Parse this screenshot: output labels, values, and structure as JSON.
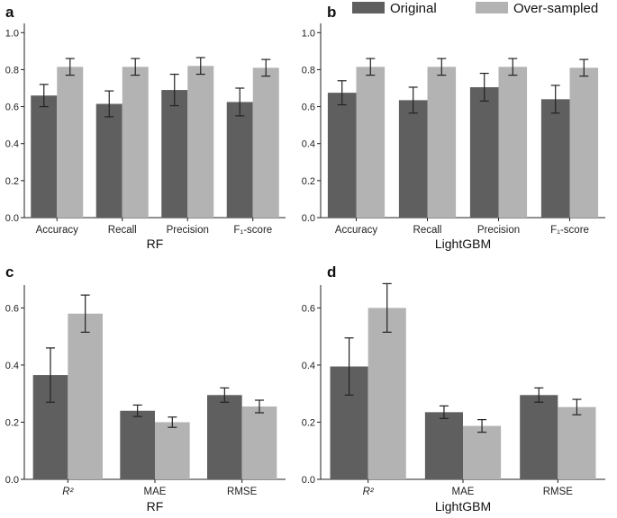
{
  "legend": {
    "items": [
      {
        "label": "Original",
        "color": "#5f5f5f"
      },
      {
        "label": "Over-sampled",
        "color": "#b3b3b3"
      }
    ],
    "placement": "top-right"
  },
  "chart_data": [
    {
      "panel": "a",
      "type": "bar",
      "categories": [
        "Accuracy",
        "Recall",
        "Precision",
        "F₁-score"
      ],
      "series": [
        {
          "name": "Original",
          "values": [
            0.66,
            0.615,
            0.69,
            0.625
          ],
          "err": [
            0.06,
            0.07,
            0.085,
            0.075
          ]
        },
        {
          "name": "Over-sampled",
          "values": [
            0.815,
            0.815,
            0.82,
            0.81
          ],
          "err": [
            0.045,
            0.045,
            0.045,
            0.045
          ]
        }
      ],
      "xlabel": "RF",
      "ylabel": "",
      "ylim": [
        0,
        1.05
      ],
      "yticks": [
        "0.0",
        "0.2",
        "0.4",
        "0.6",
        "0.8",
        "1.0"
      ],
      "grid": false
    },
    {
      "panel": "b",
      "type": "bar",
      "categories": [
        "Accuracy",
        "Recall",
        "Precision",
        "F₁-score"
      ],
      "series": [
        {
          "name": "Original",
          "values": [
            0.675,
            0.635,
            0.705,
            0.64
          ],
          "err": [
            0.065,
            0.07,
            0.075,
            0.075
          ]
        },
        {
          "name": "Over-sampled",
          "values": [
            0.815,
            0.815,
            0.815,
            0.81
          ],
          "err": [
            0.045,
            0.045,
            0.045,
            0.045
          ]
        }
      ],
      "xlabel": "LightGBM",
      "ylabel": "",
      "ylim": [
        0,
        1.05
      ],
      "yticks": [
        "0.0",
        "0.2",
        "0.4",
        "0.6",
        "0.8",
        "1.0"
      ],
      "grid": false
    },
    {
      "panel": "c",
      "type": "bar",
      "categories": [
        "R²",
        "MAE",
        "RMSE"
      ],
      "series": [
        {
          "name": "Original",
          "values": [
            0.365,
            0.24,
            0.295
          ],
          "err": [
            0.095,
            0.02,
            0.025
          ]
        },
        {
          "name": "Over-sampled",
          "values": [
            0.58,
            0.2,
            0.255
          ],
          "err": [
            0.065,
            0.018,
            0.022
          ]
        }
      ],
      "xlabel": "RF",
      "ylabel": "",
      "ylim": [
        0,
        0.68
      ],
      "yticks": [
        "0.0",
        "0.2",
        "0.4",
        "0.6"
      ],
      "grid": false
    },
    {
      "panel": "d",
      "type": "bar",
      "categories": [
        "R²",
        "MAE",
        "RMSE"
      ],
      "series": [
        {
          "name": "Original",
          "values": [
            0.395,
            0.235,
            0.295
          ],
          "err": [
            0.1,
            0.022,
            0.025
          ]
        },
        {
          "name": "Over-sampled",
          "values": [
            0.6,
            0.187,
            0.253
          ],
          "err": [
            0.085,
            0.022,
            0.027
          ]
        }
      ],
      "xlabel": "LightGBM",
      "ylabel": "",
      "ylim": [
        0,
        0.68
      ],
      "yticks": [
        "0.0",
        "0.2",
        "0.4",
        "0.6"
      ],
      "grid": false
    }
  ]
}
